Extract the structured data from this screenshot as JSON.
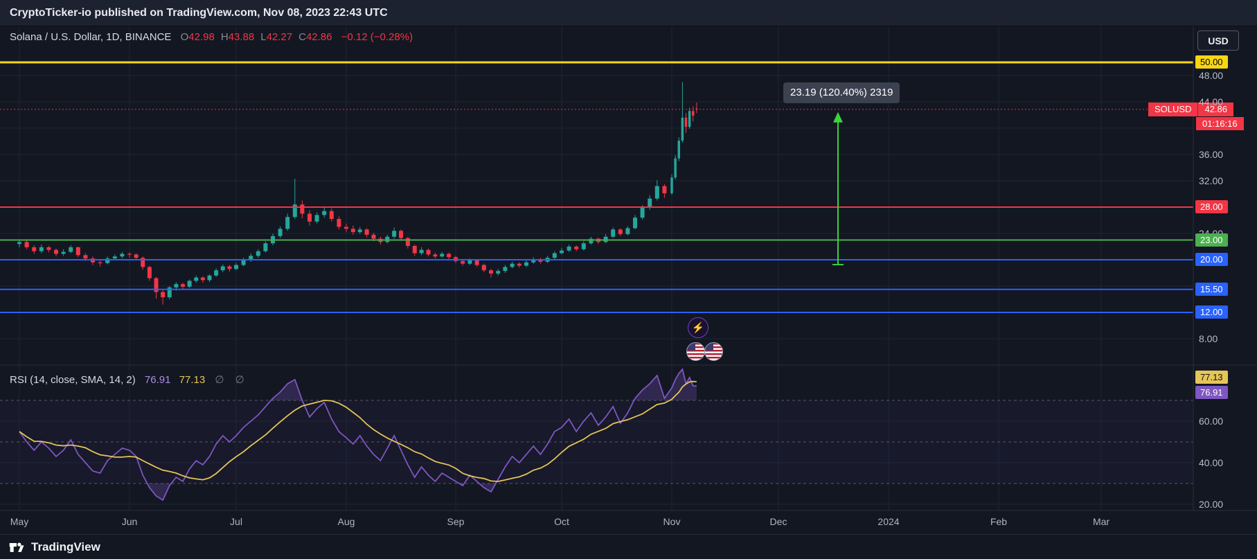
{
  "publisher_bar": {
    "text": "CryptoTicker-io published on TradingView.com, Nov 08, 2023 22:43 UTC"
  },
  "toolbar": {
    "currency_button": "USD"
  },
  "legend": {
    "title": "Solana / U.S. Dollar, 1D, BINANCE",
    "ohlc": [
      [
        "O",
        "42.98"
      ],
      [
        "H",
        "43.88"
      ],
      [
        "L",
        "42.27"
      ],
      [
        "C",
        "42.86"
      ]
    ],
    "change": "−0.12 (−0.28%)"
  },
  "annotation": {
    "label": "23.19 (120.40%) 2319",
    "from_price": 19.26,
    "to_price": 42.45,
    "color": "#3bd33b"
  },
  "price_label": {
    "symbol": "SOLUSD",
    "price": "42.86",
    "countdown": "01:16:16",
    "color": "#f23645"
  },
  "levels": [
    {
      "price": 50.0,
      "label": "50.00",
      "color": "#f7d613",
      "text": "#000000",
      "width": 3,
      "style": "solid",
      "axis_label": true
    },
    {
      "price": 42.86,
      "label": "42.86",
      "color": "#f23645",
      "text": "#ffffff",
      "width": 1,
      "style": "dashed",
      "axis_label": false
    },
    {
      "price": 28.0,
      "label": "28.00",
      "color": "#f23645",
      "text": "#ffffff",
      "width": 2,
      "style": "solid",
      "axis_label": true
    },
    {
      "price": 23.0,
      "label": "23.00",
      "color": "#4caf50",
      "text": "#ffffff",
      "width": 2,
      "style": "solid",
      "axis_label": true
    },
    {
      "price": 20.0,
      "label": "20.00",
      "color": "#2962ff",
      "text": "#ffffff",
      "width": 2,
      "style": "solid",
      "axis_label": true
    },
    {
      "price": 15.5,
      "label": "15.50",
      "color": "#2962ff",
      "text": "#ffffff",
      "width": 2,
      "style": "solid",
      "axis_label": true
    },
    {
      "price": 12.0,
      "label": "12.00",
      "color": "#2962ff",
      "text": "#ffffff",
      "width": 2,
      "style": "solid",
      "axis_label": true
    }
  ],
  "axis": {
    "price_ticks": [
      {
        "price": 48,
        "label": "48.00"
      },
      {
        "price": 44,
        "label": "44.00"
      },
      {
        "price": 36,
        "label": "36.00"
      },
      {
        "price": 32,
        "label": "32.00"
      },
      {
        "price": 24,
        "label": "24.00"
      },
      {
        "price": 8,
        "label": "8.00"
      }
    ],
    "rsi_ticks": [
      {
        "value": 60,
        "label": "60.00"
      },
      {
        "value": 40,
        "label": "40.00"
      },
      {
        "value": 20,
        "label": "20.00"
      }
    ],
    "time_labels": [
      "May",
      "Jun",
      "Jul",
      "Aug",
      "Sep",
      "Oct",
      "Nov",
      "Dec",
      "2024",
      "Feb",
      "Mar"
    ]
  },
  "rsi": {
    "legend_title": "RSI (14, close, SMA, 14, 2)",
    "value_rsi": "76.91",
    "value_sma": "77.13",
    "empty_values": "∅ ∅"
  },
  "icons": {
    "lightning": "⚡"
  },
  "footer": {
    "brand": "TradingView"
  },
  "chart_data": [
    {
      "type": "candlestick",
      "title": "Solana / U.S. Dollar, 1D, BINANCE",
      "symbol": "SOLUSD",
      "timeframe": "1D",
      "exchange": "BINANCE",
      "last_ohlc": {
        "open": 42.98,
        "high": 43.88,
        "low": 42.27,
        "close": 42.86,
        "change": -0.12,
        "change_pct": -0.28
      },
      "colors": {
        "up": "#26a69a",
        "down": "#f23645"
      },
      "y_range_visible": [
        6,
        50.5
      ],
      "x_months_with_data": [
        "May",
        "Jun",
        "Jul",
        "Aug",
        "Sep",
        "Oct",
        "Nov"
      ],
      "month_start_index": [
        0,
        15,
        31,
        46,
        62,
        77,
        92,
        100
      ],
      "horizontal_levels": [
        50.0,
        42.86,
        28.0,
        23.0,
        20.0,
        15.5,
        12.0
      ],
      "candles_ohlc": [
        [
          22.4,
          23.1,
          21.9,
          22.7
        ],
        [
          22.7,
          23.0,
          21.6,
          21.9
        ],
        [
          21.9,
          22.2,
          20.9,
          21.3
        ],
        [
          21.3,
          22.3,
          21.0,
          21.9
        ],
        [
          21.9,
          22.1,
          21.1,
          21.5
        ],
        [
          21.5,
          21.7,
          20.5,
          20.9
        ],
        [
          20.9,
          21.6,
          20.6,
          21.2
        ],
        [
          21.2,
          22.2,
          21.0,
          21.9
        ],
        [
          21.9,
          22.0,
          20.4,
          20.7
        ],
        [
          20.7,
          21.0,
          19.8,
          20.2
        ],
        [
          20.2,
          20.5,
          19.2,
          19.6
        ],
        [
          19.6,
          20.0,
          19.0,
          19.5
        ],
        [
          19.5,
          20.5,
          19.3,
          20.2
        ],
        [
          20.2,
          20.8,
          19.9,
          20.5
        ],
        [
          20.5,
          21.2,
          20.2,
          20.9
        ],
        [
          20.9,
          21.1,
          20.3,
          20.8
        ],
        [
          20.8,
          21.0,
          19.9,
          20.3
        ],
        [
          20.3,
          20.5,
          18.5,
          18.9
        ],
        [
          18.9,
          19.1,
          16.8,
          17.2
        ],
        [
          17.2,
          17.4,
          14.1,
          15.1
        ],
        [
          15.1,
          15.4,
          13.2,
          14.3
        ],
        [
          14.3,
          16.0,
          14.0,
          15.8
        ],
        [
          15.8,
          16.6,
          15.3,
          16.3
        ],
        [
          16.3,
          16.5,
          15.5,
          15.9
        ],
        [
          15.9,
          17.0,
          15.7,
          16.8
        ],
        [
          16.8,
          17.6,
          16.5,
          17.3
        ],
        [
          17.3,
          17.5,
          16.5,
          16.9
        ],
        [
          16.9,
          17.8,
          16.6,
          17.6
        ],
        [
          17.6,
          18.7,
          17.4,
          18.4
        ],
        [
          18.4,
          19.3,
          18.1,
          19.0
        ],
        [
          19.0,
          19.2,
          18.2,
          18.6
        ],
        [
          18.6,
          19.5,
          18.4,
          19.2
        ],
        [
          19.2,
          20.3,
          19.0,
          20.0
        ],
        [
          20.0,
          21.0,
          19.7,
          20.6
        ],
        [
          20.6,
          21.6,
          20.3,
          21.3
        ],
        [
          21.3,
          22.8,
          21.1,
          22.5
        ],
        [
          22.5,
          24.0,
          22.2,
          23.6
        ],
        [
          23.6,
          25.1,
          23.3,
          24.7
        ],
        [
          24.7,
          27.0,
          24.4,
          26.5
        ],
        [
          26.5,
          32.3,
          26.2,
          28.4
        ],
        [
          28.4,
          29.0,
          26.3,
          27.0
        ],
        [
          27.0,
          27.5,
          25.2,
          25.8
        ],
        [
          25.8,
          27.2,
          25.5,
          26.8
        ],
        [
          26.8,
          28.0,
          26.4,
          27.4
        ],
        [
          27.4,
          27.8,
          25.8,
          26.2
        ],
        [
          26.2,
          26.6,
          24.6,
          25.0
        ],
        [
          25.0,
          25.5,
          24.2,
          24.7
        ],
        [
          24.7,
          25.2,
          23.8,
          24.2
        ],
        [
          24.2,
          25.0,
          23.9,
          24.6
        ],
        [
          24.6,
          24.8,
          23.4,
          23.8
        ],
        [
          23.8,
          24.1,
          22.8,
          23.2
        ],
        [
          23.2,
          23.5,
          22.3,
          22.7
        ],
        [
          22.7,
          23.8,
          22.5,
          23.5
        ],
        [
          23.5,
          24.9,
          23.2,
          24.4
        ],
        [
          24.4,
          24.6,
          23.0,
          23.3
        ],
        [
          23.3,
          23.5,
          21.7,
          22.1
        ],
        [
          22.1,
          22.3,
          20.6,
          21.0
        ],
        [
          21.0,
          21.9,
          20.7,
          21.5
        ],
        [
          21.5,
          21.7,
          20.5,
          20.8
        ],
        [
          20.8,
          21.1,
          20.2,
          20.5
        ],
        [
          20.5,
          21.2,
          20.3,
          20.9
        ],
        [
          20.9,
          21.1,
          20.1,
          20.4
        ],
        [
          20.4,
          20.6,
          19.5,
          19.8
        ],
        [
          19.8,
          20.1,
          19.1,
          19.4
        ],
        [
          19.4,
          20.2,
          19.2,
          19.9
        ],
        [
          19.9,
          20.1,
          18.9,
          19.2
        ],
        [
          19.2,
          19.4,
          18.1,
          18.4
        ],
        [
          18.4,
          18.6,
          17.3,
          17.9
        ],
        [
          17.9,
          18.6,
          17.6,
          18.3
        ],
        [
          18.3,
          19.2,
          18.0,
          18.9
        ],
        [
          18.9,
          19.7,
          18.7,
          19.4
        ],
        [
          19.4,
          19.6,
          18.8,
          19.1
        ],
        [
          19.1,
          19.9,
          18.9,
          19.6
        ],
        [
          19.6,
          20.4,
          19.4,
          20.1
        ],
        [
          20.1,
          20.3,
          19.4,
          19.7
        ],
        [
          19.7,
          20.6,
          19.5,
          20.3
        ],
        [
          20.3,
          21.3,
          20.1,
          21.0
        ],
        [
          21.0,
          21.8,
          20.8,
          21.4
        ],
        [
          21.4,
          22.3,
          21.2,
          22.0
        ],
        [
          22.0,
          22.2,
          21.3,
          21.6
        ],
        [
          21.6,
          22.8,
          21.4,
          22.5
        ],
        [
          22.5,
          23.5,
          22.3,
          23.2
        ],
        [
          23.2,
          23.4,
          22.4,
          22.7
        ],
        [
          22.7,
          23.9,
          22.5,
          23.5
        ],
        [
          23.5,
          24.9,
          23.3,
          24.6
        ],
        [
          24.6,
          24.8,
          23.6,
          23.9
        ],
        [
          23.9,
          25.1,
          23.7,
          24.8
        ],
        [
          24.8,
          26.8,
          24.6,
          26.4
        ],
        [
          26.4,
          28.3,
          26.1,
          27.9
        ],
        [
          27.9,
          29.8,
          27.6,
          29.3
        ],
        [
          29.3,
          32.1,
          29.0,
          31.2
        ],
        [
          31.2,
          31.5,
          29.4,
          30.1
        ],
        [
          30.1,
          33.0,
          29.9,
          32.5
        ],
        [
          32.5,
          35.9,
          32.2,
          35.4
        ],
        [
          35.4,
          38.6,
          35.0,
          38.1
        ],
        [
          38.1,
          47.0,
          37.8,
          41.6
        ],
        [
          41.6,
          42.3,
          39.3,
          40.2
        ],
        [
          40.2,
          43.1,
          39.9,
          42.6
        ],
        [
          42.6,
          43.3,
          41.0,
          41.9
        ],
        [
          42.98,
          43.88,
          42.27,
          42.86
        ]
      ]
    },
    {
      "type": "line",
      "title": "RSI (14, close, SMA, 14, 2)",
      "colors": {
        "rsi": "#7e57c2",
        "sma": "#e5c558",
        "band_fill": "rgba(126,87,194,0.28)",
        "band_bg": "rgba(126,87,194,0.05)"
      },
      "bands": {
        "upper": 70,
        "middle": 50,
        "lower": 30
      },
      "last_values": {
        "rsi": 76.91,
        "sma": 77.13
      },
      "values": [
        55,
        50,
        46,
        50,
        47,
        43,
        46,
        51,
        44,
        40,
        36,
        35,
        41,
        44,
        47,
        46,
        43,
        34,
        28,
        24,
        22,
        29,
        33,
        31,
        37,
        41,
        39,
        43,
        49,
        53,
        50,
        53,
        57,
        60,
        63,
        67,
        71,
        74,
        78,
        80,
        70,
        62,
        66,
        69,
        61,
        55,
        52,
        49,
        53,
        48,
        44,
        41,
        47,
        53,
        46,
        39,
        33,
        38,
        34,
        31,
        35,
        33,
        31,
        29,
        34,
        31,
        28,
        26,
        32,
        38,
        43,
        40,
        44,
        48,
        44,
        49,
        55,
        57,
        61,
        55,
        60,
        64,
        58,
        62,
        67,
        59,
        64,
        71,
        75,
        78,
        82,
        71,
        76,
        80,
        83,
        85,
        78,
        81,
        77,
        76.91
      ]
    }
  ]
}
